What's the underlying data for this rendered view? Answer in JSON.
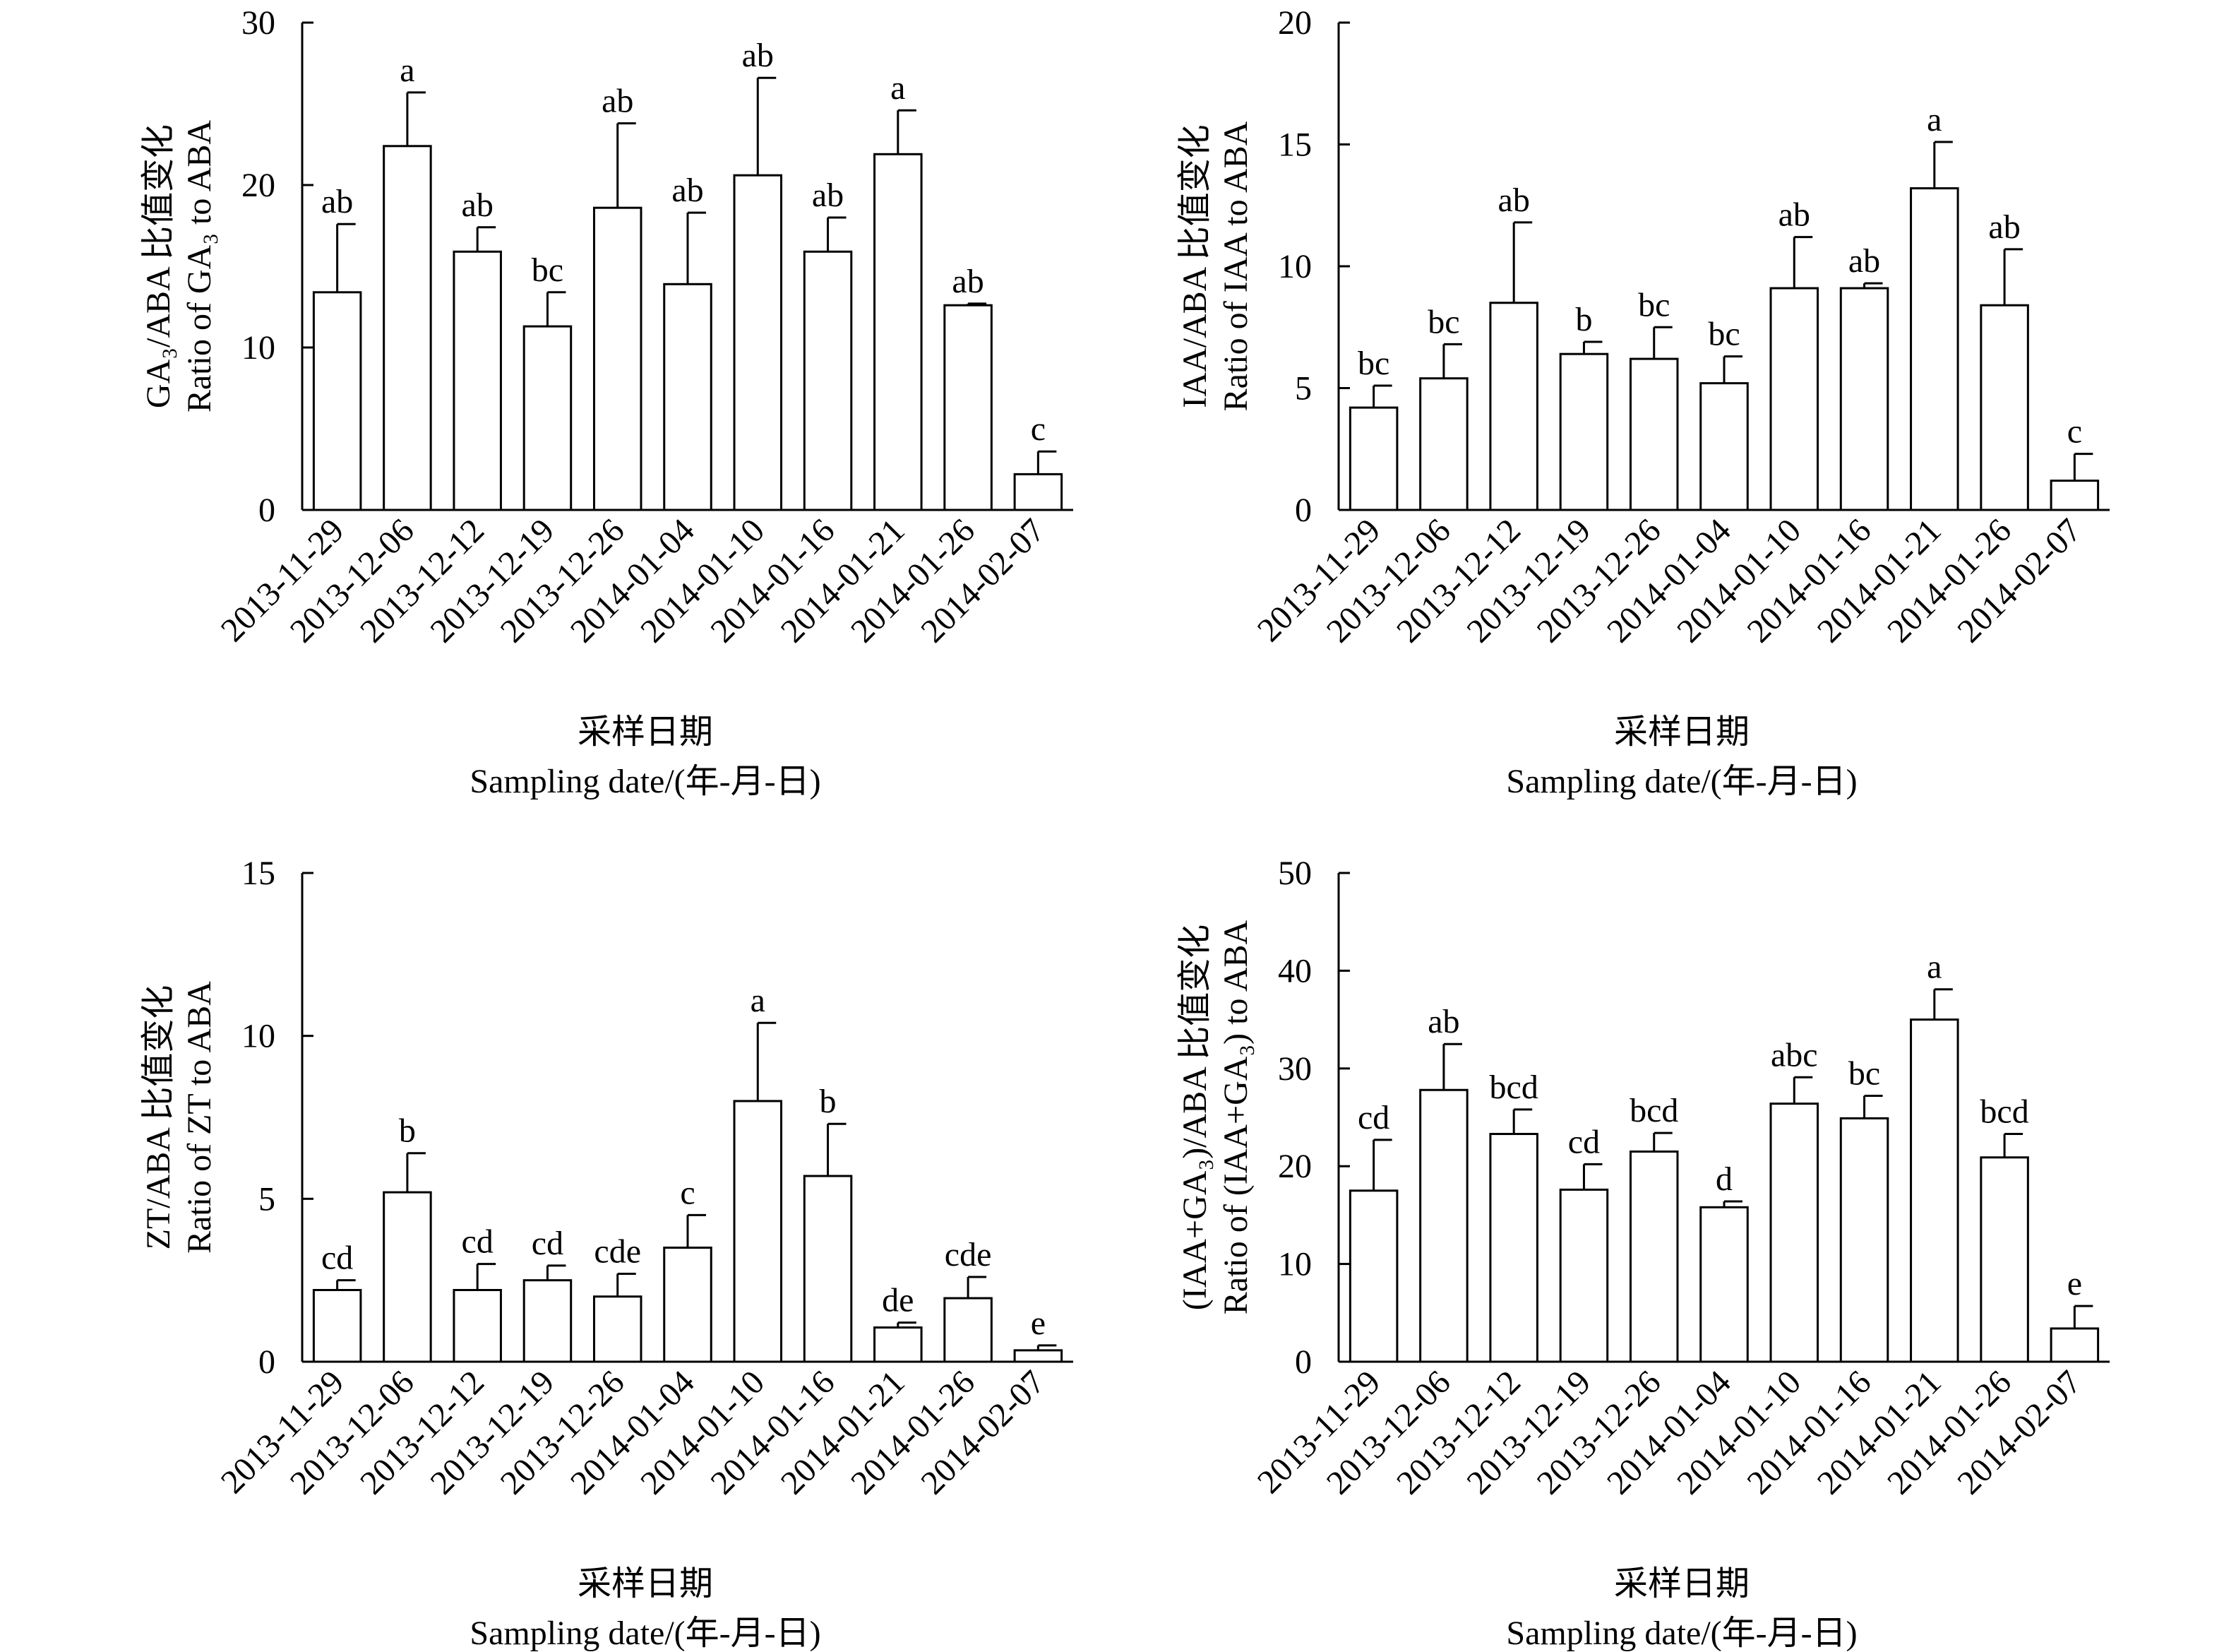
{
  "chart_data": [
    {
      "type": "bar",
      "ylabel_line1": "GA₃/ABA 比值变化",
      "ylabel_line2": "Ratio of GA₃ to ABA",
      "xlabel_line1": "采样日期",
      "xlabel_line2": "Sampling date/(年-月-日)",
      "categories": [
        "2013-11-29",
        "2013-12-06",
        "2013-12-12",
        "2013-12-19",
        "2013-12-26",
        "2014-01-04",
        "2014-01-10",
        "2014-01-16",
        "2014-01-21",
        "2014-01-26",
        "2014-02-07"
      ],
      "values": [
        13.4,
        22.4,
        15.9,
        11.3,
        18.6,
        13.9,
        20.6,
        15.9,
        21.9,
        12.6,
        2.2
      ],
      "errors": [
        4.2,
        3.3,
        1.5,
        2.1,
        5.2,
        4.4,
        6.0,
        2.1,
        2.7,
        0.1,
        1.4
      ],
      "letters": [
        "ab",
        "a",
        "ab",
        "bc",
        "ab",
        "ab",
        "ab",
        "ab",
        "a",
        "ab",
        "c"
      ],
      "ylim": [
        0,
        30
      ],
      "yticks": [
        0,
        10,
        20,
        30
      ]
    },
    {
      "type": "bar",
      "ylabel_line1": "IAA/ABA 比值变化",
      "ylabel_line2": "Ratio of IAA to ABA",
      "xlabel_line1": "采样日期",
      "xlabel_line2": "Sampling date/(年-月-日)",
      "categories": [
        "2013-11-29",
        "2013-12-06",
        "2013-12-12",
        "2013-12-19",
        "2013-12-26",
        "2014-01-04",
        "2014-01-10",
        "2014-01-16",
        "2014-01-21",
        "2014-01-26",
        "2014-02-07"
      ],
      "values": [
        4.2,
        5.4,
        8.5,
        6.4,
        6.2,
        5.2,
        9.1,
        9.1,
        13.2,
        8.4,
        1.2
      ],
      "errors": [
        0.9,
        1.4,
        3.3,
        0.5,
        1.3,
        1.1,
        2.1,
        0.2,
        1.9,
        2.3,
        1.1
      ],
      "letters": [
        "bc",
        "bc",
        "ab",
        "b",
        "bc",
        "bc",
        "ab",
        "ab",
        "a",
        "ab",
        "c"
      ],
      "ylim": [
        0,
        20
      ],
      "yticks": [
        0,
        5,
        10,
        15,
        20
      ]
    },
    {
      "type": "bar",
      "ylabel_line1": "ZT/ABA 比值变化",
      "ylabel_line2": "Ratio of ZT to ABA",
      "xlabel_line1": "采样日期",
      "xlabel_line2": "Sampling date/(年-月-日)",
      "categories": [
        "2013-11-29",
        "2013-12-06",
        "2013-12-12",
        "2013-12-19",
        "2013-12-26",
        "2014-01-04",
        "2014-01-10",
        "2014-01-16",
        "2014-01-21",
        "2014-01-26",
        "2014-02-07"
      ],
      "values": [
        2.2,
        5.2,
        2.2,
        2.5,
        2.0,
        3.5,
        8.0,
        5.7,
        1.05,
        1.95,
        0.35
      ],
      "errors": [
        0.3,
        1.2,
        0.8,
        0.45,
        0.7,
        1.0,
        2.4,
        1.6,
        0.15,
        0.65,
        0.15
      ],
      "letters": [
        "cd",
        "b",
        "cd",
        "cd",
        "cde",
        "c",
        "a",
        "b",
        "de",
        "cde",
        "e"
      ],
      "ylim": [
        0,
        15
      ],
      "yticks": [
        0,
        5,
        10,
        15
      ]
    },
    {
      "type": "bar",
      "ylabel_line1": "(IAA+GA₃)/ABA 比值变化",
      "ylabel_line2": "Ratio of (IAA+GA₃) to ABA",
      "xlabel_line1": "采样日期",
      "xlabel_line2": "Sampling date/(年-月-日)",
      "categories": [
        "2013-11-29",
        "2013-12-06",
        "2013-12-12",
        "2013-12-19",
        "2013-12-26",
        "2014-01-04",
        "2014-01-10",
        "2014-01-16",
        "2014-01-21",
        "2014-01-26",
        "2014-02-07"
      ],
      "values": [
        17.5,
        27.8,
        23.3,
        17.6,
        21.5,
        15.8,
        26.4,
        24.9,
        35.0,
        20.9,
        3.4
      ],
      "errors": [
        5.2,
        4.7,
        2.5,
        2.6,
        1.9,
        0.6,
        2.7,
        2.3,
        3.1,
        2.4,
        2.3
      ],
      "letters": [
        "cd",
        "ab",
        "bcd",
        "cd",
        "bcd",
        "d",
        "abc",
        "bc",
        "a",
        "bcd",
        "e"
      ],
      "ylim": [
        0,
        50
      ],
      "yticks": [
        0,
        10,
        20,
        30,
        40,
        50
      ]
    }
  ]
}
